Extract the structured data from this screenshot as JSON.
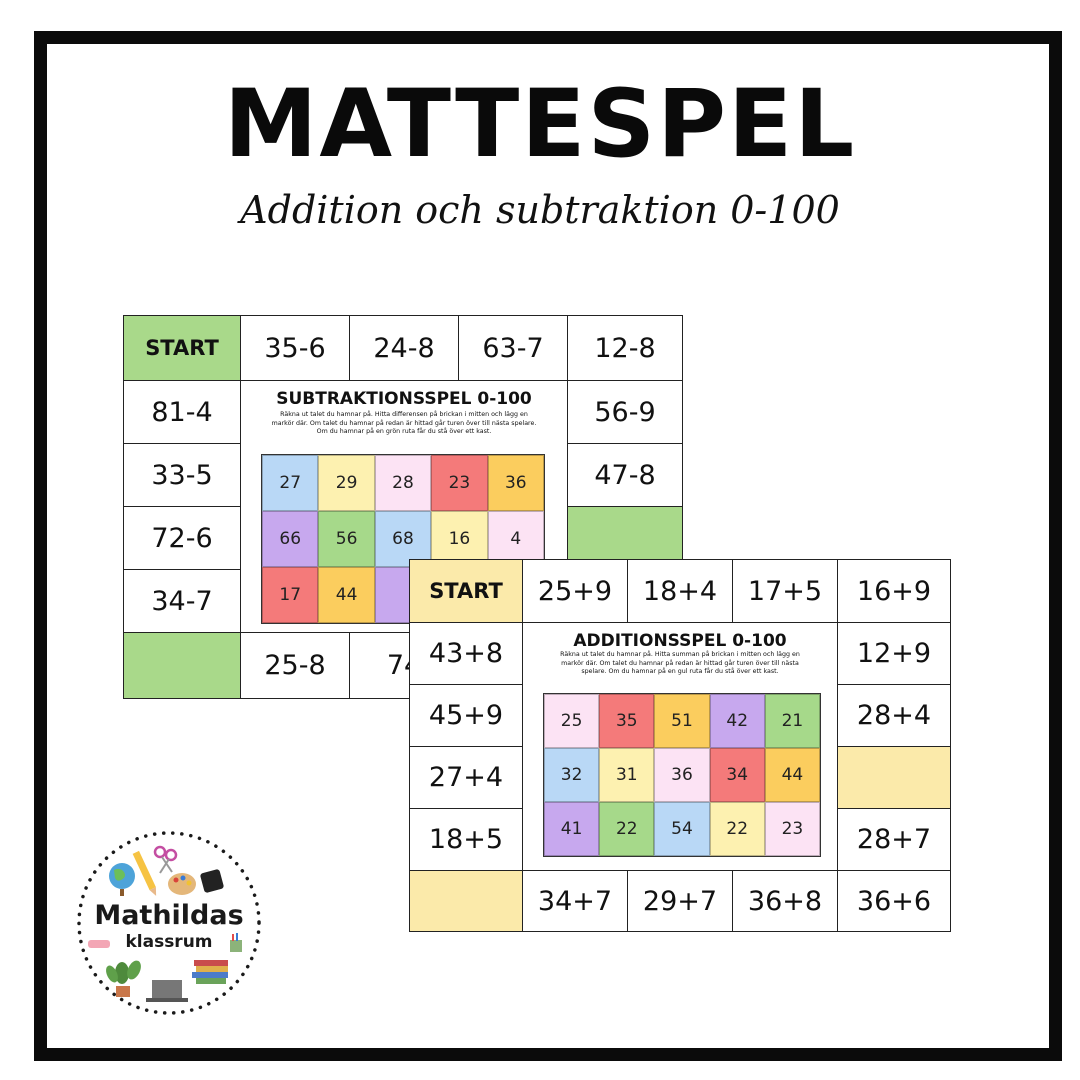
{
  "header": {
    "title": "MATTESPEL",
    "subtitle": "Addition och subtraktion 0-100"
  },
  "subtraction_board": {
    "start_label": "START",
    "top": [
      "35-6",
      "24-8",
      "63-7",
      "12-8"
    ],
    "left": [
      "81-4",
      "33-5",
      "72-6",
      "34-7"
    ],
    "right": [
      "56-9",
      "47-8"
    ],
    "bottom": [
      "25-8",
      "74"
    ],
    "title": "SUBTRAKTIONSSPEL 0-100",
    "description": "Räkna ut talet du hamnar på. Hitta differensen på brickan i mitten och lägg en markör där. Om talet du hamnar på redan är hittad går turen över till nästa spelare. Om du hamnar på en grön ruta får du stå över ett kast.",
    "grid": [
      {
        "value": "27",
        "color": "#b9d8f6"
      },
      {
        "value": "29",
        "color": "#fdf1b0"
      },
      {
        "value": "28",
        "color": "#fce3f4"
      },
      {
        "value": "23",
        "color": "#f47a7a"
      },
      {
        "value": "36",
        "color": "#fbcd5e"
      },
      {
        "value": "66",
        "color": "#c7a8ee"
      },
      {
        "value": "56",
        "color": "#a6d98a"
      },
      {
        "value": "68",
        "color": "#b9d8f6"
      },
      {
        "value": "16",
        "color": "#fdf1b0"
      },
      {
        "value": "4",
        "color": "#fce3f4"
      },
      {
        "value": "17",
        "color": "#f47a7a"
      },
      {
        "value": "44",
        "color": "#fbcd5e"
      },
      {
        "value": "",
        "color": "#c7a8ee"
      },
      {
        "value": "",
        "color": "#a6d98a"
      },
      {
        "value": "",
        "color": "#b9d8f6"
      }
    ]
  },
  "addition_board": {
    "start_label": "START",
    "top": [
      "25+9",
      "18+4",
      "17+5",
      "16+9"
    ],
    "left": [
      "43+8",
      "45+9",
      "27+4",
      "18+5"
    ],
    "right": [
      "12+9",
      "28+4",
      "",
      "28+7"
    ],
    "bottom": [
      "34+7",
      "29+7",
      "36+8",
      "36+6"
    ],
    "title": "ADDITIONSSPEL 0-100",
    "description": "Räkna ut talet du hamnar på. Hitta summan på brickan i mitten och lägg en markör där. Om talet du hamnar på redan är hittad går turen över till nästa spelare. Om du hamnar på en gul ruta får du stå över ett kast.",
    "grid": [
      {
        "value": "25",
        "color": "#fce3f4"
      },
      {
        "value": "35",
        "color": "#f47a7a"
      },
      {
        "value": "51",
        "color": "#fbcd5e"
      },
      {
        "value": "42",
        "color": "#c7a8ee"
      },
      {
        "value": "21",
        "color": "#a6d98a"
      },
      {
        "value": "32",
        "color": "#b9d8f6"
      },
      {
        "value": "31",
        "color": "#fdf1b0"
      },
      {
        "value": "36",
        "color": "#fce3f4"
      },
      {
        "value": "34",
        "color": "#f47a7a"
      },
      {
        "value": "44",
        "color": "#fbcd5e"
      },
      {
        "value": "41",
        "color": "#c7a8ee"
      },
      {
        "value": "22",
        "color": "#a6d98a"
      },
      {
        "value": "54",
        "color": "#b9d8f6"
      },
      {
        "value": "22",
        "color": "#fdf1b0"
      },
      {
        "value": "23",
        "color": "#fce3f4"
      }
    ]
  },
  "logo": {
    "name": "Mathildas",
    "subname": "klassrum"
  }
}
